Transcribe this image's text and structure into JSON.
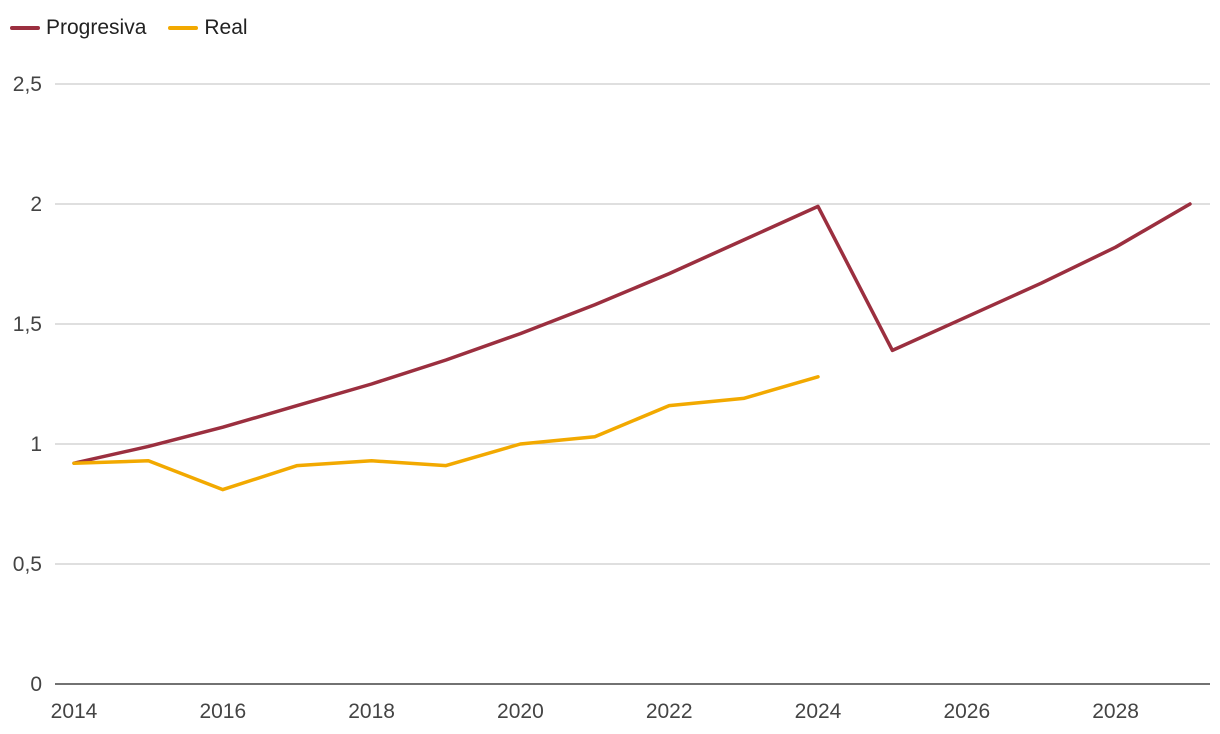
{
  "chart_data": {
    "type": "line",
    "x": [
      2014,
      2015,
      2016,
      2017,
      2018,
      2019,
      2020,
      2021,
      2022,
      2023,
      2024,
      2025,
      2026,
      2027,
      2028,
      2029
    ],
    "series": [
      {
        "name": "Progresiva",
        "color": "#9b2f3f",
        "values": [
          0.92,
          0.99,
          1.07,
          1.16,
          1.25,
          1.35,
          1.46,
          1.58,
          1.71,
          1.85,
          1.99,
          1.39,
          1.53,
          1.67,
          1.82,
          2.0
        ]
      },
      {
        "name": "Real",
        "color": "#f2a900",
        "values": [
          0.92,
          0.93,
          0.81,
          0.91,
          0.93,
          0.91,
          1.0,
          1.03,
          1.16,
          1.19,
          1.28,
          null,
          null,
          null,
          null,
          null
        ]
      }
    ],
    "ylim": [
      0,
      2.5
    ],
    "yticks": [
      0,
      0.5,
      1,
      1.5,
      2,
      2.5
    ],
    "ytick_labels": [
      "0",
      "0,5",
      "1",
      "1,5",
      "2",
      "2,5"
    ],
    "xticks": [
      2014,
      2016,
      2018,
      2020,
      2022,
      2024,
      2026,
      2028
    ],
    "xtick_labels": [
      "2014",
      "2016",
      "2018",
      "2020",
      "2022",
      "2024",
      "2026",
      "2028"
    ],
    "grid": true,
    "legend_position": "top-left",
    "title": "",
    "xlabel": "",
    "ylabel": ""
  }
}
